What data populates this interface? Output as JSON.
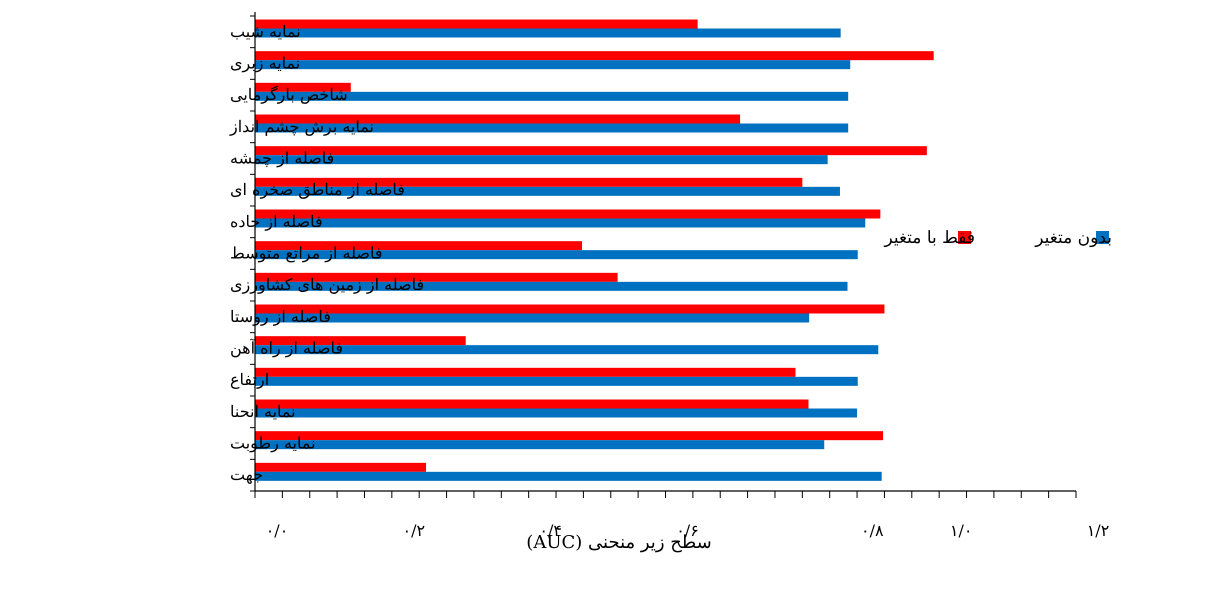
{
  "chart_data": {
    "type": "bar",
    "orientation": "horizontal",
    "categories": [
      "نمایه شیب",
      "نمایه زبری",
      "شاخص بارگرمایی",
      "نمایه برش چشم انداز",
      "فاصله از چمشه",
      "فاصله از مناطق صخره ای",
      "فاصله از جاده",
      "فاصله از مراتع متوسط",
      "فاصله از زمین های کشاورزی",
      "فاصله از روستا",
      "فاصله از راه آهن",
      "ارتفاع",
      "نمایه انحنا",
      "نمایه رطوبت",
      "جهت"
    ],
    "series": [
      {
        "name": "فقط با متغیر",
        "color": "#ff0000",
        "values": [
          0.647,
          0.992,
          0.14,
          0.709,
          0.982,
          0.8,
          0.914,
          0.478,
          0.53,
          0.92,
          0.308,
          0.79,
          0.809,
          0.918,
          0.25
        ]
      },
      {
        "name": "بدون متغیر",
        "color": "#0070c0",
        "values": [
          0.856,
          0.87,
          0.867,
          0.867,
          0.837,
          0.855,
          0.892,
          0.881,
          0.866,
          0.81,
          0.911,
          0.881,
          0.88,
          0.832,
          0.916
        ]
      }
    ],
    "xlabel": "سطح زیر منحنی (AUC)",
    "xlim": [
      0,
      1.2
    ],
    "xticks": [
      "۰/۰",
      "۰/۲",
      "۰/۴",
      "۰/۶",
      "۰/۸",
      "۱/۰",
      "۱/۲"
    ],
    "grid": false,
    "legend_position": "right"
  }
}
